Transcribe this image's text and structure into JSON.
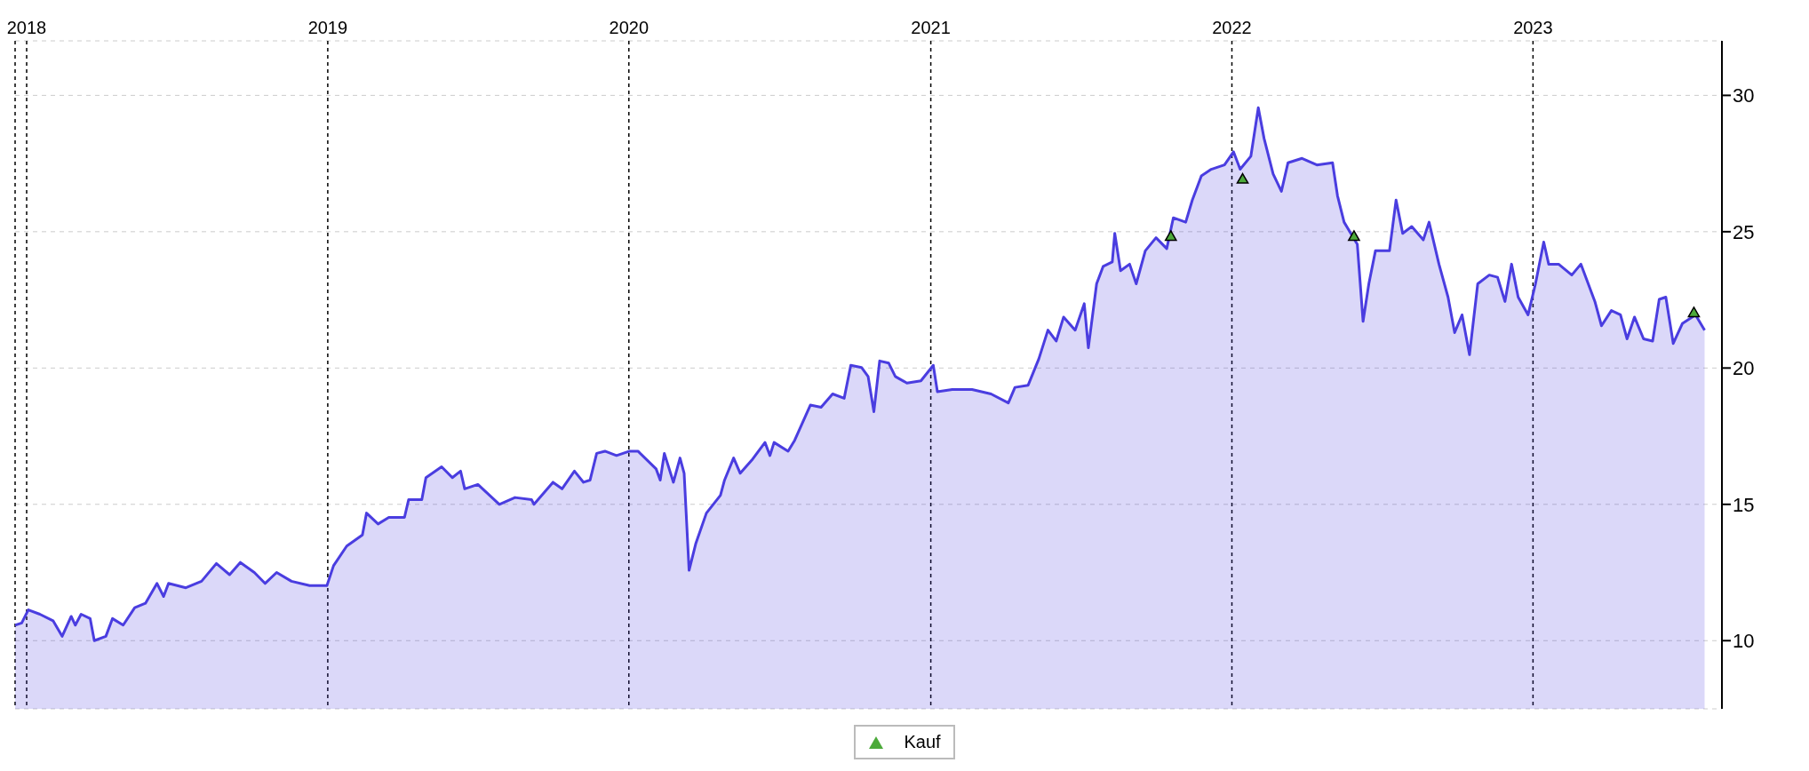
{
  "chart_data": {
    "type": "area",
    "xlim": [
      "2017-12-18",
      "2023-08-18"
    ],
    "ylim": [
      7.5,
      32
    ],
    "yticks": [
      10,
      15,
      20,
      25,
      30
    ],
    "xticks": [
      {
        "value": "2018-01-01",
        "label": "2018"
      },
      {
        "value": "2019-01-01",
        "label": "2019"
      },
      {
        "value": "2020-01-01",
        "label": "2020"
      },
      {
        "value": "2021-01-01",
        "label": "2021"
      },
      {
        "value": "2022-01-01",
        "label": "2022"
      },
      {
        "value": "2023-01-01",
        "label": "2023"
      }
    ],
    "grid": true,
    "legend": "bottom",
    "series": [
      {
        "color": "#4a3de0",
        "x": [
          "2017-12-18",
          "2017-12-26",
          "2018-01-03",
          "2018-01-17",
          "2018-02-02",
          "2018-02-13",
          "2018-02-24",
          "2018-03-01",
          "2018-03-08",
          "2018-03-19",
          "2018-03-24",
          "2018-04-07",
          "2018-04-15",
          "2018-04-28",
          "2018-05-12",
          "2018-05-25",
          "2018-06-08",
          "2018-06-16",
          "2018-06-22",
          "2018-07-13",
          "2018-08-01",
          "2018-08-19",
          "2018-09-04",
          "2018-09-17",
          "2018-10-04",
          "2018-10-17",
          "2018-10-31",
          "2018-11-18",
          "2018-12-10",
          "2018-12-31",
          "2019-01-08",
          "2019-01-24",
          "2019-02-12",
          "2019-02-17",
          "2019-03-03",
          "2019-03-16",
          "2019-04-04",
          "2019-04-09",
          "2019-04-25",
          "2019-04-30",
          "2019-05-19",
          "2019-06-01",
          "2019-06-11",
          "2019-06-16",
          "2019-07-02",
          "2019-07-28",
          "2019-08-16",
          "2019-09-05",
          "2019-09-08",
          "2019-10-01",
          "2019-10-12",
          "2019-10-27",
          "2019-11-07",
          "2019-11-15",
          "2019-11-23",
          "2019-12-03",
          "2019-12-17",
          "2020-01-02",
          "2020-01-12",
          "2020-02-03",
          "2020-02-08",
          "2020-02-13",
          "2020-02-24",
          "2020-03-03",
          "2020-03-08",
          "2020-03-14",
          "2020-03-22",
          "2020-04-04",
          "2020-04-21",
          "2020-04-26",
          "2020-05-07",
          "2020-05-15",
          "2020-05-29",
          "2020-06-14",
          "2020-06-20",
          "2020-06-25",
          "2020-07-12",
          "2020-07-20",
          "2020-08-08",
          "2020-08-21",
          "2020-09-04",
          "2020-09-18",
          "2020-09-26",
          "2020-10-09",
          "2020-10-17",
          "2020-10-24",
          "2020-10-31",
          "2020-11-11",
          "2020-11-19",
          "2020-12-03",
          "2020-12-20",
          "2021-01-04",
          "2021-01-09",
          "2021-01-27",
          "2021-02-20",
          "2021-03-15",
          "2021-04-05",
          "2021-04-13",
          "2021-04-29",
          "2021-05-12",
          "2021-05-23",
          "2021-06-02",
          "2021-06-11",
          "2021-06-25",
          "2021-07-06",
          "2021-07-11",
          "2021-07-21",
          "2021-07-29",
          "2021-08-09",
          "2021-08-12",
          "2021-08-19",
          "2021-08-30",
          "2021-09-07",
          "2021-09-18",
          "2021-10-01",
          "2021-10-14",
          "2021-10-22",
          "2021-11-06",
          "2021-11-14",
          "2021-11-25",
          "2021-12-07",
          "2021-12-23",
          "2022-01-03",
          "2022-01-11",
          "2022-01-24",
          "2022-02-02",
          "2022-02-09",
          "2022-02-20",
          "2022-03-02",
          "2022-03-10",
          "2022-03-27",
          "2022-04-14",
          "2022-05-03",
          "2022-05-09",
          "2022-05-17",
          "2022-06-02",
          "2022-06-09",
          "2022-06-16",
          "2022-06-24",
          "2022-07-11",
          "2022-07-19",
          "2022-07-27",
          "2022-08-07",
          "2022-08-21",
          "2022-08-28",
          "2022-09-09",
          "2022-09-20",
          "2022-09-28",
          "2022-10-07",
          "2022-10-16",
          "2022-10-26",
          "2022-11-09",
          "2022-11-19",
          "2022-11-28",
          "2022-12-06",
          "2022-12-14",
          "2022-12-26",
          "2023-01-04",
          "2023-01-14",
          "2023-01-20",
          "2023-02-01",
          "2023-02-17",
          "2023-02-28",
          "2023-03-17",
          "2023-03-25",
          "2023-04-06",
          "2023-04-17",
          "2023-04-25",
          "2023-05-04",
          "2023-05-15",
          "2023-05-26",
          "2023-06-03",
          "2023-06-11",
          "2023-06-20",
          "2023-07-01",
          "2023-07-17",
          "2023-07-28"
        ],
        "values": [
          10.57,
          10.65,
          11.13,
          10.97,
          10.73,
          10.16,
          10.89,
          10.57,
          10.97,
          10.81,
          10.0,
          10.16,
          10.81,
          10.57,
          11.21,
          11.37,
          12.1,
          11.62,
          12.1,
          11.94,
          12.18,
          12.83,
          12.42,
          12.87,
          12.5,
          12.1,
          12.5,
          12.18,
          12.02,
          12.02,
          12.75,
          13.47,
          13.88,
          14.68,
          14.28,
          14.52,
          14.52,
          15.17,
          15.17,
          15.98,
          16.38,
          15.98,
          16.22,
          15.57,
          15.73,
          15.0,
          15.25,
          15.17,
          15.0,
          15.81,
          15.57,
          16.22,
          15.81,
          15.89,
          16.87,
          16.95,
          16.79,
          16.95,
          16.95,
          16.3,
          15.89,
          16.87,
          15.81,
          16.7,
          16.14,
          12.58,
          13.55,
          14.68,
          15.33,
          15.89,
          16.7,
          16.14,
          16.62,
          17.27,
          16.79,
          17.27,
          16.95,
          17.35,
          18.64,
          18.56,
          19.05,
          18.89,
          20.1,
          20.02,
          19.69,
          18.4,
          20.26,
          20.18,
          19.69,
          19.45,
          19.53,
          20.1,
          19.13,
          19.21,
          19.21,
          19.05,
          18.72,
          19.29,
          19.37,
          20.34,
          21.39,
          20.99,
          21.87,
          21.39,
          22.36,
          20.74,
          23.09,
          23.73,
          23.89,
          24.94,
          23.57,
          23.81,
          23.09,
          24.3,
          24.78,
          24.38,
          25.51,
          25.35,
          26.16,
          27.05,
          27.29,
          27.45,
          27.93,
          27.29,
          27.77,
          29.55,
          28.42,
          27.12,
          26.48,
          27.53,
          27.69,
          27.45,
          27.53,
          26.32,
          25.35,
          24.54,
          21.71,
          23.09,
          24.3,
          24.3,
          26.16,
          24.94,
          25.19,
          24.7,
          25.35,
          23.81,
          22.6,
          21.3,
          21.95,
          20.49,
          23.09,
          23.41,
          23.33,
          22.44,
          23.81,
          22.6,
          21.95,
          23.09,
          24.62,
          23.81,
          23.81,
          23.41,
          23.81,
          22.44,
          21.55,
          22.11,
          21.95,
          21.07,
          21.87,
          21.07,
          20.99,
          22.52,
          22.6,
          20.9,
          21.63,
          21.95,
          21.39
        ]
      },
      {
        "type": "scatter",
        "name": "Kauf",
        "color": "#4caa3a",
        "marker": "triangle",
        "x": [
          "2021-10-19",
          "2022-01-14",
          "2022-05-29",
          "2023-07-15"
        ],
        "values": [
          24.8,
          26.9,
          24.8,
          22.0
        ]
      }
    ]
  }
}
